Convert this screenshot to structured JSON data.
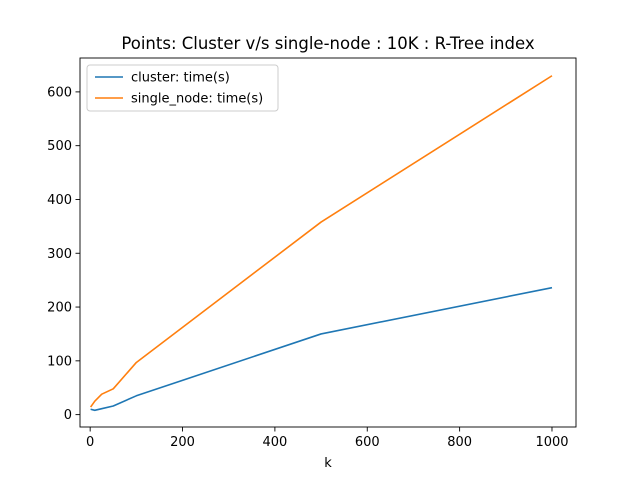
{
  "chart_data": {
    "type": "line",
    "title": "Points: Cluster v/s single-node : 10K : R-Tree index",
    "xlabel": "k",
    "ylabel": "",
    "xlim": [
      -22,
      1052
    ],
    "ylim": [
      -23,
      663
    ],
    "xticks": [
      0,
      200,
      400,
      600,
      800,
      1000
    ],
    "yticks": [
      0,
      100,
      200,
      300,
      400,
      500,
      600
    ],
    "grid": false,
    "legend_position": "top-left",
    "series": [
      {
        "name": "cluster: time(s)",
        "color": "#1f77b4",
        "x": [
          1,
          10,
          25,
          50,
          100,
          500,
          1000
        ],
        "y": [
          10,
          8,
          11,
          16,
          35,
          150,
          236
        ]
      },
      {
        "name": "single_node: time(s)",
        "color": "#ff7f0e",
        "x": [
          1,
          10,
          25,
          50,
          100,
          500,
          1000
        ],
        "y": [
          14,
          25,
          38,
          48,
          97,
          358,
          630
        ]
      }
    ]
  }
}
